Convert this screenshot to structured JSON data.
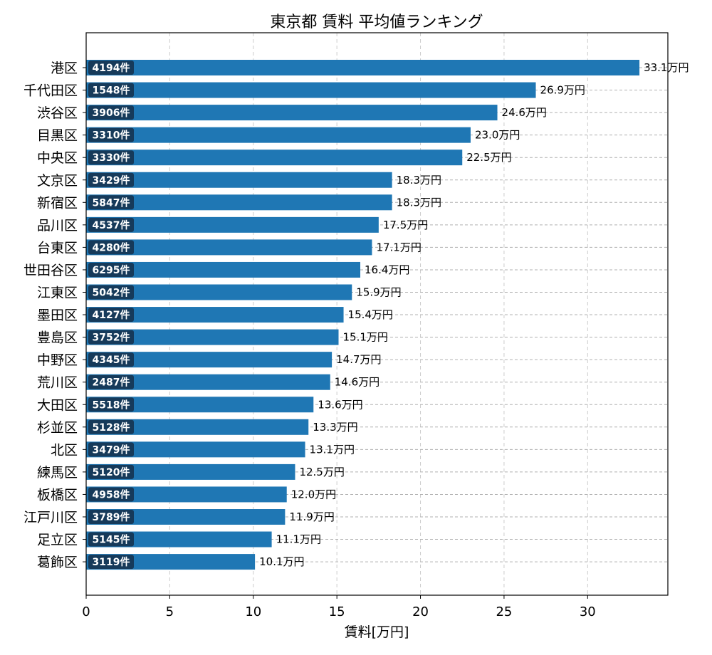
{
  "chart_data": {
    "type": "bar",
    "orientation": "horizontal",
    "title": "東京都 賃料 平均値ランキング",
    "xlabel": "賃料[万円]",
    "ylabel": "",
    "xlim": [
      0,
      34.8
    ],
    "xticks": [
      0,
      5,
      10,
      15,
      20,
      25,
      30
    ],
    "value_unit": "万円",
    "count_unit": "件",
    "grid": true,
    "bar_color": "#1f77b4",
    "badge_color": "#163a5a",
    "categories": [
      "港区",
      "千代田区",
      "渋谷区",
      "目黒区",
      "中央区",
      "文京区",
      "新宿区",
      "品川区",
      "台東区",
      "世田谷区",
      "江東区",
      "墨田区",
      "豊島区",
      "中野区",
      "荒川区",
      "大田区",
      "杉並区",
      "北区",
      "練馬区",
      "板橋区",
      "江戸川区",
      "足立区",
      "葛飾区"
    ],
    "values": [
      33.1,
      26.9,
      24.6,
      23.0,
      22.5,
      18.3,
      18.3,
      17.5,
      17.1,
      16.4,
      15.9,
      15.4,
      15.1,
      14.7,
      14.6,
      13.6,
      13.3,
      13.1,
      12.5,
      12.0,
      11.9,
      11.1,
      10.1
    ],
    "counts": [
      4194,
      1548,
      3906,
      3310,
      3330,
      3429,
      5847,
      4537,
      4280,
      6295,
      5042,
      4127,
      3752,
      4345,
      2487,
      5518,
      5128,
      3479,
      5120,
      4958,
      3789,
      5145,
      3119
    ]
  }
}
